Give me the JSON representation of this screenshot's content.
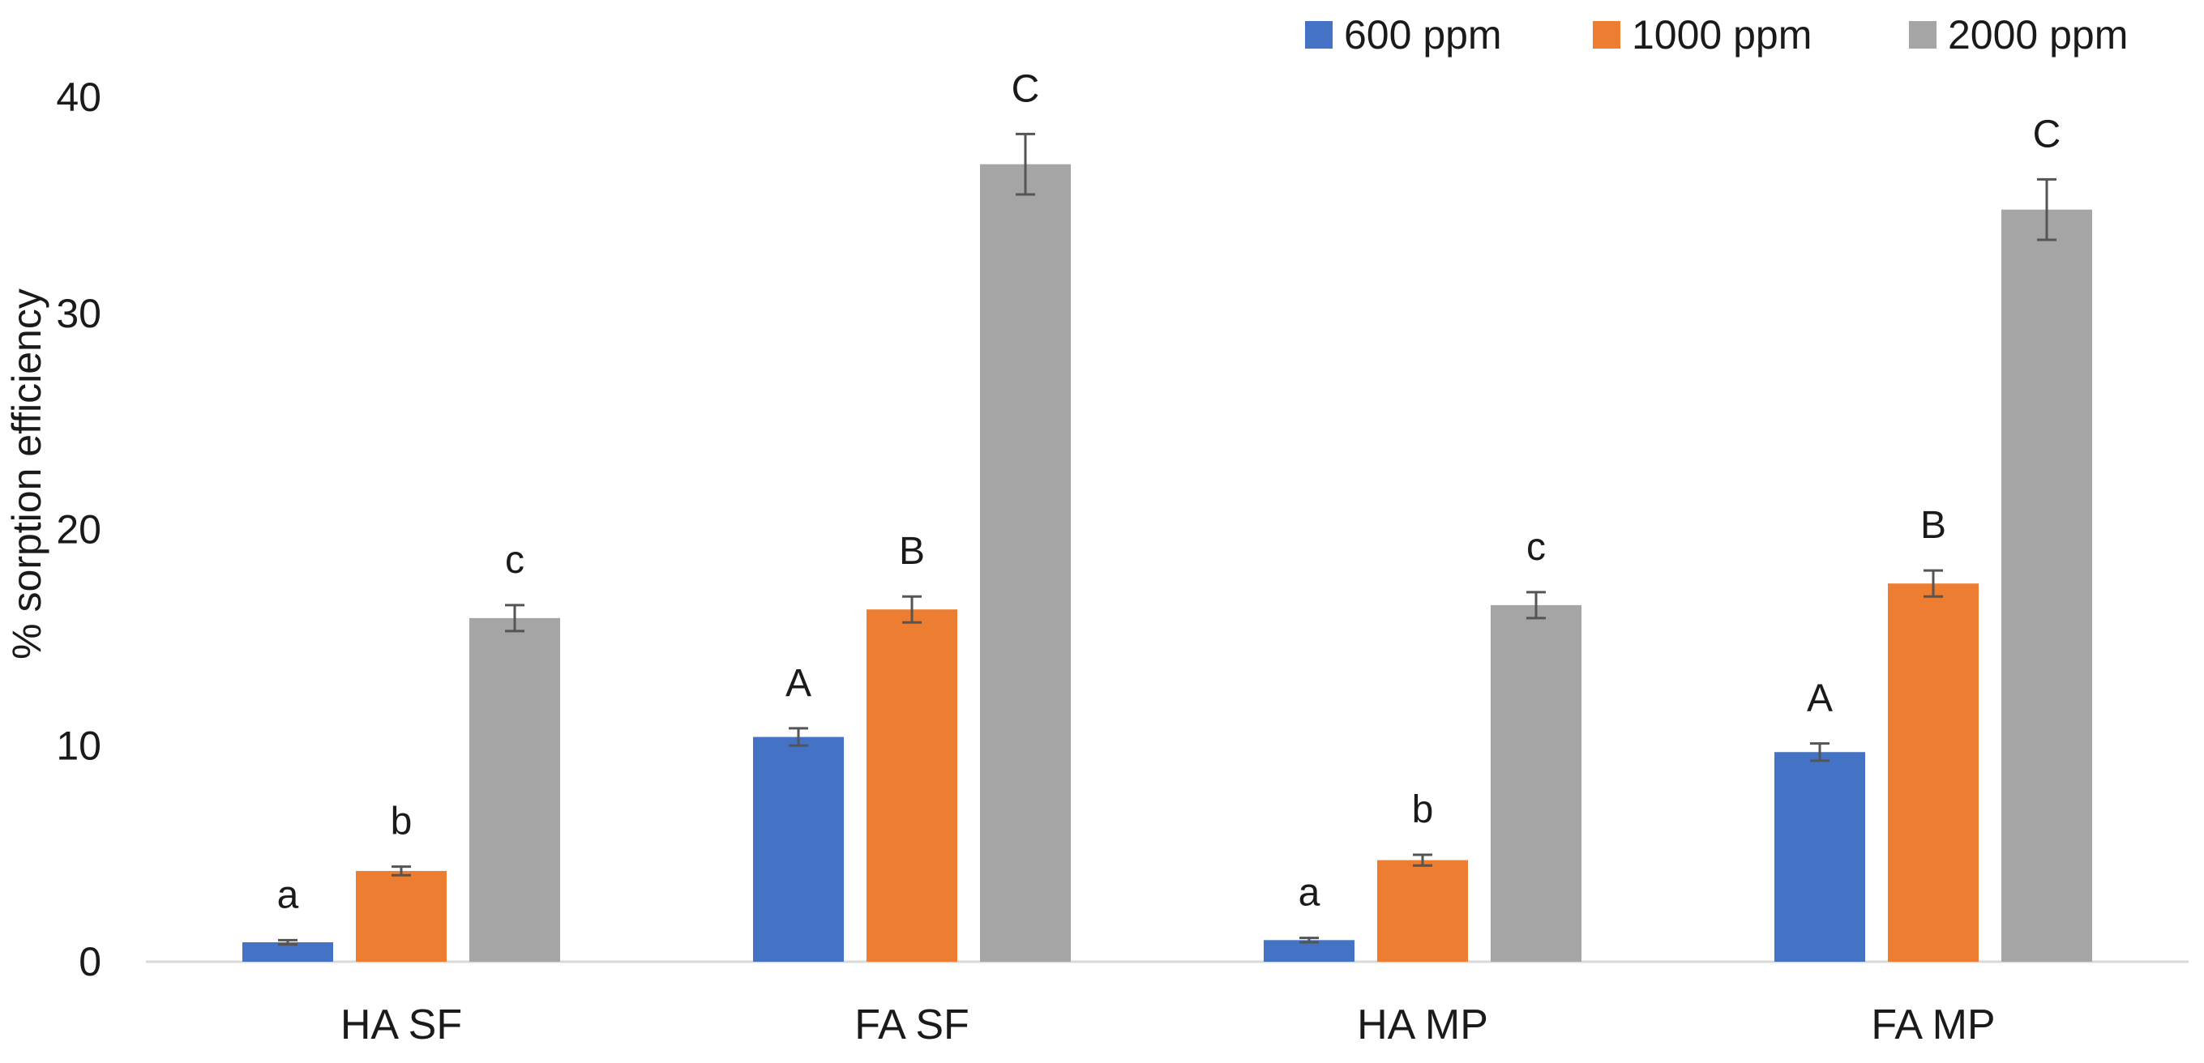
{
  "colors": {
    "600 ppm": "#4472c4",
    "1000 ppm": "#ed7d31",
    "2000 ppm": "#a5a5a5",
    "axis": "#d9d9d9",
    "error_bar": "#555555"
  },
  "chart_data": {
    "type": "bar",
    "title": "",
    "xlabel": "",
    "ylabel": "% sorption efficiency",
    "ylim": [
      0,
      40
    ],
    "yticks": [
      0,
      10,
      20,
      30,
      40
    ],
    "grid": false,
    "legend_position": "top-right",
    "categories": [
      "HA SF",
      "FA SF",
      "HA MP",
      "FA MP"
    ],
    "series": [
      {
        "name": "600 ppm",
        "values": [
          0.9,
          10.4,
          1.0,
          9.7
        ],
        "errors": [
          0.1,
          0.4,
          0.1,
          0.4
        ],
        "labels": [
          "a",
          "A",
          "a",
          "A"
        ]
      },
      {
        "name": "1000 ppm",
        "values": [
          4.2,
          16.3,
          4.7,
          17.5
        ],
        "errors": [
          0.2,
          0.6,
          0.25,
          0.6
        ],
        "labels": [
          "b",
          "B",
          "b",
          "B"
        ]
      },
      {
        "name": "2000 ppm",
        "values": [
          15.9,
          36.9,
          16.5,
          34.8
        ],
        "errors": [
          0.6,
          1.4,
          0.6,
          1.4
        ],
        "labels": [
          "c",
          "C",
          "c",
          "C"
        ]
      }
    ]
  }
}
